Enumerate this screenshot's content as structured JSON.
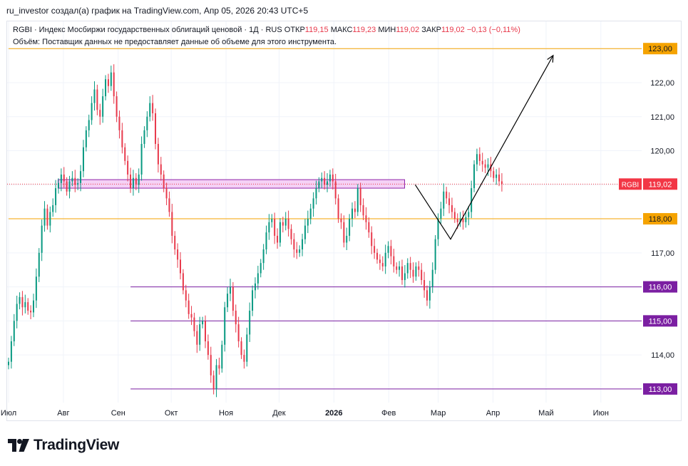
{
  "header": {
    "attribution": "ru_investor создал(а) график на TradingView.com, Апр 05, 2026 20:43 UTC+5"
  },
  "legend": {
    "symbol": "RGBI · Индекс Мосбиржи государственных облигаций ценовой · 1Д · RUS",
    "open_label": "ОТКР",
    "open": "119,15",
    "high_label": "МАКС",
    "high": "119,23",
    "low_label": "МИН",
    "low": "119,02",
    "close_label": "ЗАКР",
    "close": "119,02",
    "change": "−0,13 (−0,11%)",
    "volume_note": "Объём: Поставщик данных не предоставляет данные об объеме для этого инструмента."
  },
  "logo": {
    "text": "TradingView"
  },
  "colors": {
    "up": "#089981",
    "down": "#e8394b",
    "orange": "#f5a300",
    "purple": "#7b1fa2",
    "zone_fill": "#f3c6f3",
    "zone_stroke": "#8e24aa",
    "last_price": "#f23645",
    "arrow": "#000000"
  },
  "chart_data": {
    "type": "candlestick",
    "title": "RGBI",
    "timeframe": "1D",
    "ylim": [
      112.6,
      123.8
    ],
    "y_ticks": [
      "114,00",
      "115,00",
      "116,00",
      "117,00",
      "118,00",
      "119,00",
      "120,00",
      "121,00",
      "122,00",
      "123,00"
    ],
    "x_ticks": [
      {
        "label": "Июл",
        "day": 0
      },
      {
        "label": "Авг",
        "day": 31
      },
      {
        "label": "Сен",
        "day": 62
      },
      {
        "label": "Окт",
        "day": 92
      },
      {
        "label": "Ноя",
        "day": 123
      },
      {
        "label": "Дек",
        "day": 153
      },
      {
        "label": "2026",
        "day": 184
      },
      {
        "label": "Фев",
        "day": 215
      },
      {
        "label": "Мар",
        "day": 243
      },
      {
        "label": "Апр",
        "day": 274
      },
      {
        "label": "Май",
        "day": 304
      },
      {
        "label": "Июн",
        "day": 335
      }
    ],
    "closes": [
      113.8,
      114.4,
      115.0,
      115.5,
      115.7,
      115.4,
      115.55,
      115.3,
      115.25,
      115.6,
      116.3,
      117.0,
      117.8,
      118.3,
      117.8,
      118.2,
      118.4,
      118.9,
      119.05,
      119.3,
      119.1,
      118.8,
      119.1,
      119.2,
      119.0,
      119.05,
      119.4,
      120.1,
      120.6,
      120.9,
      121.4,
      121.8,
      121.2,
      121.0,
      121.6,
      122.1,
      121.9,
      122.3,
      121.6,
      121.0,
      120.6,
      120.1,
      119.7,
      119.3,
      118.9,
      119.2,
      119.0,
      119.3,
      120.2,
      120.6,
      121.0,
      121.4,
      121.1,
      120.2,
      119.6,
      119.3,
      118.9,
      118.6,
      118.2,
      117.5,
      117.1,
      116.8,
      116.4,
      115.9,
      115.6,
      115.2,
      115.1,
      114.7,
      114.3,
      114.9,
      115.0,
      114.4,
      114.0,
      113.4,
      113.0,
      113.7,
      113.6,
      114.3,
      115.4,
      115.8,
      116.0,
      115.3,
      114.9,
      114.4,
      114.0,
      113.8,
      114.6,
      115.3,
      115.9,
      116.1,
      116.4,
      116.7,
      117.1,
      117.6,
      117.9,
      118.0,
      117.5,
      117.3,
      117.9,
      117.8,
      118.0,
      117.7,
      117.4,
      117.1,
      117.0,
      117.1,
      117.4,
      117.8,
      118.0,
      118.3,
      118.6,
      118.9,
      119.1,
      119.2,
      119.0,
      119.1,
      119.3,
      119.1,
      118.6,
      118.0,
      117.9,
      117.3,
      117.5,
      118.0,
      118.3,
      118.2,
      118.9,
      118.4,
      118.1,
      117.9,
      117.6,
      117.2,
      117.0,
      116.8,
      116.7,
      116.6,
      117.0,
      117.2,
      116.9,
      116.6,
      116.5,
      116.6,
      116.2,
      116.4,
      116.7,
      116.5,
      116.3,
      116.6,
      116.5,
      116.2,
      115.9,
      115.6,
      116.0,
      116.5,
      117.4,
      118.0,
      118.3,
      118.8,
      118.6,
      118.4,
      118.2,
      118.0,
      117.9,
      118.0,
      117.9,
      118.05,
      118.2,
      118.9,
      119.6,
      119.9,
      119.7,
      119.6,
      119.5,
      119.6,
      119.4,
      119.2,
      119.3,
      119.1,
      119.02
    ],
    "last_price": {
      "label": "RGBI",
      "value": 119.02,
      "value_text": "119,02"
    },
    "horizontal_levels": [
      {
        "value": 123.0,
        "label": "123,00",
        "color": "orange",
        "from_day": 0
      },
      {
        "value": 118.0,
        "label": "118,00",
        "color": "orange",
        "from_day": 0
      },
      {
        "value": 116.0,
        "label": "116,00",
        "color": "purple",
        "from_day": 69
      },
      {
        "value": 115.0,
        "label": "115,00",
        "color": "purple",
        "from_day": 69
      },
      {
        "value": 113.0,
        "label": "113,00",
        "color": "purple",
        "from_day": 69
      }
    ],
    "zone": {
      "y_low": 118.9,
      "y_high": 119.15,
      "from_day": 28,
      "to_day": 224
    },
    "forecast_path": [
      {
        "day": 230,
        "value": 119.0
      },
      {
        "day": 250,
        "value": 117.4
      },
      {
        "day": 308,
        "value": 122.8
      }
    ]
  }
}
